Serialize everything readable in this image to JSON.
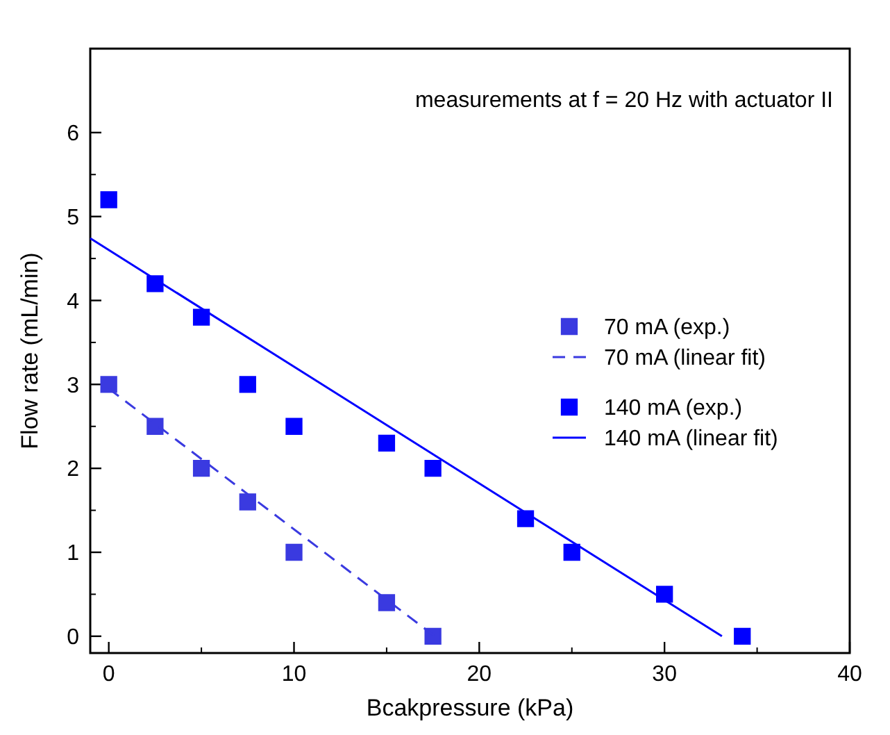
{
  "chart_data": {
    "type": "scatter",
    "xlabel": "Bcakpressure (kPa)",
    "ylabel": "Flow rate (mL/min)",
    "xlim": [
      -1,
      40
    ],
    "xticks": [
      0,
      10,
      20,
      30,
      40
    ],
    "ylim": [
      -0.2,
      7
    ],
    "yticks": [
      0,
      1,
      2,
      3,
      4,
      5,
      6
    ],
    "grid": false,
    "legend": "right",
    "annotations": [
      "measurements at f = 20 Hz with actuator II"
    ],
    "series": [
      {
        "name": "70 mA (exp.)",
        "marker": "square",
        "color": "#3a3ae0",
        "x": [
          0,
          2.5,
          5,
          7.5,
          10,
          15,
          17.5
        ],
        "values": [
          3,
          2.5,
          2,
          1.6,
          1,
          0.4,
          0
        ]
      },
      {
        "name": "70 mA (linear fit)",
        "type": "line",
        "marker": "none",
        "line_style": "dashed",
        "color": "#3a3ae0",
        "x": [
          0,
          17.6
        ],
        "values": [
          2.95,
          0
        ]
      },
      {
        "name": "140 mA (exp.)",
        "marker": "square",
        "color": "#0000ff",
        "x": [
          0,
          2.5,
          5,
          7.5,
          10,
          15,
          17.5,
          22.5,
          25,
          30,
          34.2
        ],
        "values": [
          5.2,
          4.2,
          3.8,
          3,
          2.5,
          2.3,
          2,
          1.4,
          1,
          0.5,
          0
        ]
      },
      {
        "name": "140 mA (linear fit)",
        "type": "line",
        "marker": "none",
        "line_style": "solid",
        "color": "#0000ff",
        "x": [
          -1,
          33.1
        ],
        "values": [
          4.74,
          0
        ]
      }
    ]
  }
}
